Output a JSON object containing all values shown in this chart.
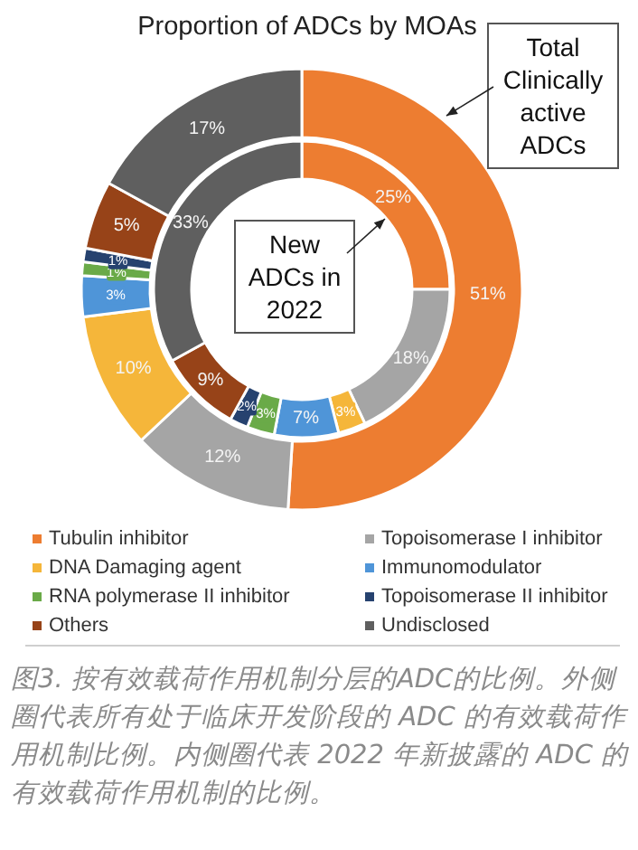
{
  "chart_data": {
    "type": "donut",
    "title": "Proportion of ADCs by MOAs",
    "categories": [
      "Tubulin inhibitor",
      "Topoisomerase I inhibitor",
      "DNA Damaging agent",
      "Immunomodulator",
      "RNA polymerase II inhibitor",
      "Topoisomerase II inhibitor",
      "Others",
      "Undisclosed"
    ],
    "colors": [
      "#ed7d31",
      "#a5a5a5",
      "#f5b63a",
      "#4f95d8",
      "#6aaa48",
      "#26426f",
      "#974318",
      "#5f5f5f"
    ],
    "series": [
      {
        "name": "Total Clinically active ADCs",
        "values": [
          51,
          12,
          10,
          3,
          1,
          1,
          5,
          17
        ],
        "value_labels": [
          "51%",
          "12%",
          "10%",
          "3%",
          "1%",
          "1%",
          "5%",
          "17%"
        ]
      },
      {
        "name": "New ADCs in 2022",
        "values": [
          25,
          18,
          3,
          7,
          3,
          2,
          9,
          33
        ],
        "value_labels": [
          "25%",
          "18%",
          "3%",
          "7%",
          "3%",
          "2%",
          "9%",
          "33%"
        ]
      }
    ],
    "legend": "bottom",
    "annotations": [
      "图3. 按有效载荷作用机制分层的ADC的比例。外侧圈代表所有处于临床开发阶段的 ADC 的有效载荷作用机制比例。内侧圈代表 2022 年新披露的 ADC 的有效载荷作用机制的比例。"
    ]
  }
}
